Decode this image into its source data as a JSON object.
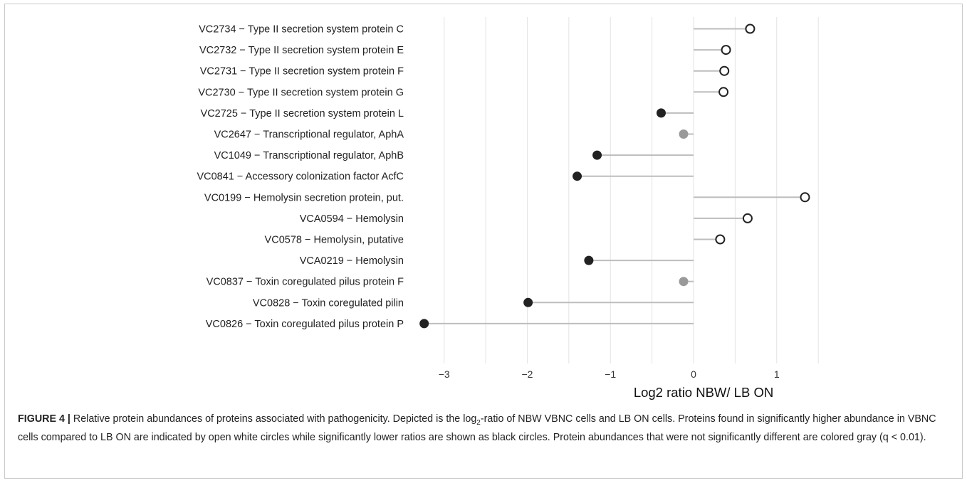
{
  "chart_data": {
    "type": "lollipop",
    "xlabel": "Log2 ratio NBW/ LB ON",
    "xlim": [
      -3.4,
      1.55
    ],
    "xticks": [
      -3,
      -2,
      -1,
      0,
      1
    ],
    "xtick_labels": [
      "−3",
      "−2",
      "−1",
      "0",
      "1"
    ],
    "grid": "vertical major and minor lines",
    "legend": "none",
    "rows": [
      {
        "label": "VC2734 − Type II secretion system protein C",
        "value": 0.68,
        "fill": "open"
      },
      {
        "label": "VC2732 − Type II secretion system protein E",
        "value": 0.39,
        "fill": "open"
      },
      {
        "label": "VC2731 − Type II secretion system protein F",
        "value": 0.37,
        "fill": "open"
      },
      {
        "label": "VC2730 − Type II secretion system protein G",
        "value": 0.36,
        "fill": "open"
      },
      {
        "label": "VC2725 − Type II secretion system protein L",
        "value": -0.39,
        "fill": "black"
      },
      {
        "label": "VC2647 − Transcriptional regulator, AphA",
        "value": -0.12,
        "fill": "gray"
      },
      {
        "label": "VC1049 − Transcriptional regulator, AphB",
        "value": -1.16,
        "fill": "black"
      },
      {
        "label": "VC0841 − Accessory colonization factor AcfC",
        "value": -1.4,
        "fill": "black"
      },
      {
        "label": "VC0199 − Hemolysin secretion protein, put.",
        "value": 1.34,
        "fill": "open"
      },
      {
        "label": "VCA0594 − Hemolysin",
        "value": 0.65,
        "fill": "open"
      },
      {
        "label": "VC0578 − Hemolysin, putative",
        "value": 0.32,
        "fill": "open"
      },
      {
        "label": "VCA0219 − Hemolysin",
        "value": -1.26,
        "fill": "black"
      },
      {
        "label": "VC0837 − Toxin coregulated pilus protein F",
        "value": -0.12,
        "fill": "gray"
      },
      {
        "label": "VC0828 − Toxin coregulated pilin",
        "value": -1.99,
        "fill": "black"
      },
      {
        "label": "VC0826 − Toxin coregulated pilus protein P",
        "value": -3.24,
        "fill": "black"
      }
    ],
    "colors": {
      "black": "#222222",
      "gray": "#999999",
      "open": "#ffffff",
      "stem": "#bdbdbd",
      "grid": "#e3e3e3"
    }
  },
  "caption": {
    "label": "FIGURE 4 |",
    "prefix": " Relative protein abundances of proteins associated with pathogenicity. Depicted is the log",
    "subscript": "2",
    "suffix": "-ratio of NBW VBNC cells and LB ON cells. Proteins found in significantly higher abundance in VBNC cells compared to LB ON are indicated by open white circles while significantly lower ratios are shown as black circles. Protein abundances that were not significantly different are colored gray (q < 0.01)."
  }
}
